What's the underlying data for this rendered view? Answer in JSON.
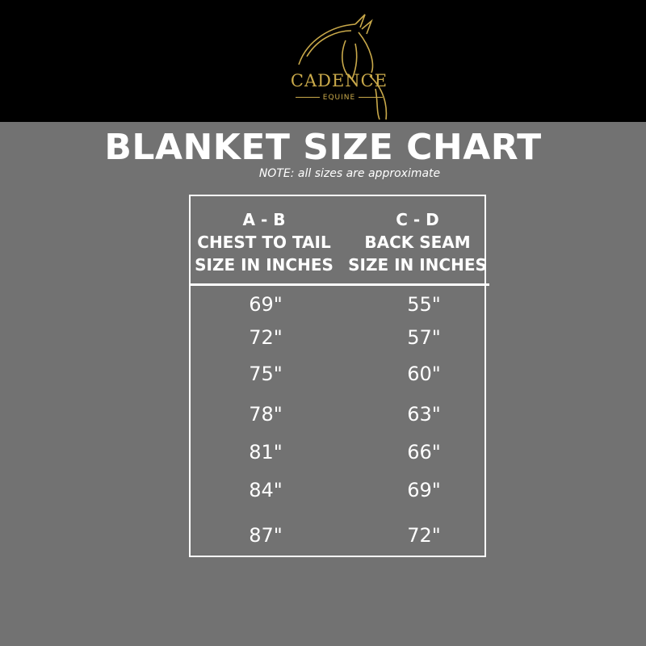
{
  "logo": {
    "brand": "CADENCE",
    "sub": "EQUINE",
    "color": "#c9a94a"
  },
  "title": "BLANKET SIZE CHART",
  "note": "NOTE: all sizes are approximate",
  "table": {
    "headers": [
      {
        "line1": "A - B",
        "line2": "CHEST TO TAIL",
        "line3": "SIZE IN INCHES"
      },
      {
        "line1": "C - D",
        "line2": "BACK SEAM",
        "line3": "SIZE IN INCHES"
      }
    ],
    "rows": [
      [
        "69\"",
        "55\""
      ],
      [
        "72\"",
        "57\""
      ],
      [
        "75\"",
        "60\""
      ],
      [
        "78\"",
        "63\""
      ],
      [
        "81\"",
        "66\""
      ],
      [
        "84\"",
        "69\""
      ],
      [
        "87\"",
        "72\""
      ]
    ]
  }
}
